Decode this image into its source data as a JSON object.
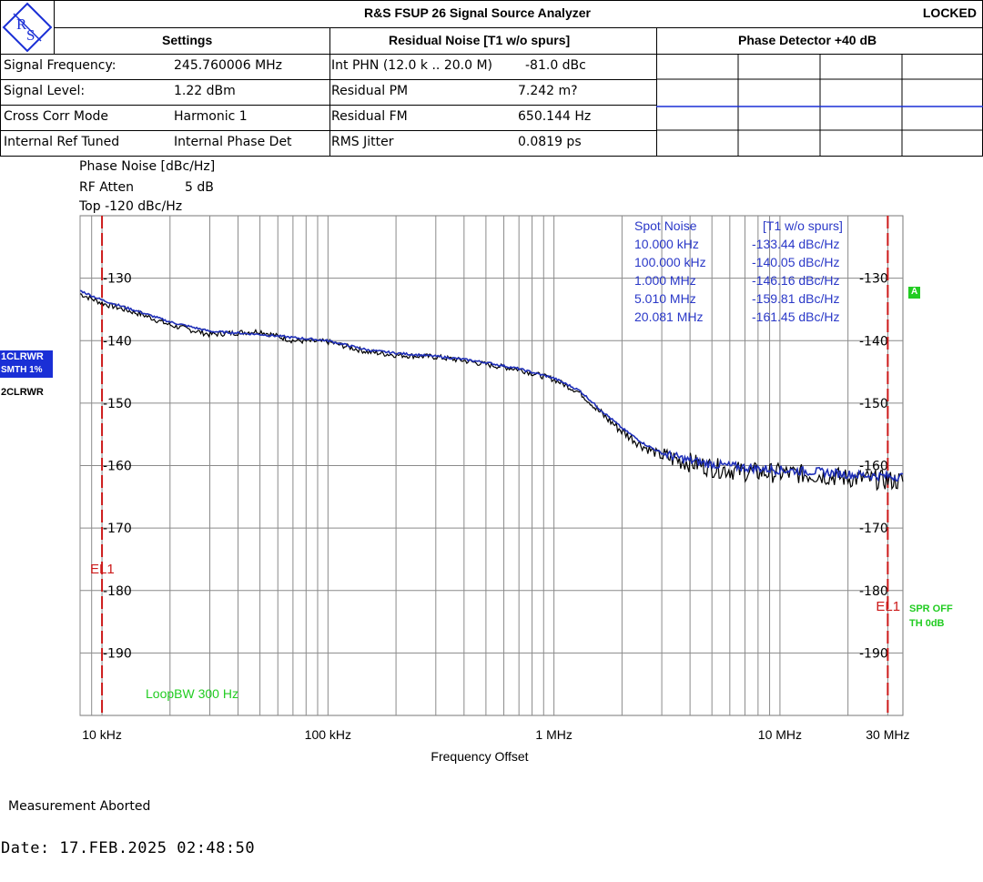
{
  "header": {
    "logo_text": "RS",
    "instrument_title": "R&S FSUP 26 Signal Source Analyzer",
    "status": "LOCKED",
    "col_settings": "Settings",
    "col_residual": "Residual Noise [T1 w/o spurs]",
    "col_phase_detector": "Phase Detector +40 dB"
  },
  "settings": [
    {
      "label": "Signal Frequency:",
      "value": "245.760006 MHz"
    },
    {
      "label": "Signal Level:",
      "value": "1.22 dBm"
    },
    {
      "label": "Cross Corr Mode",
      "value": "Harmonic 1"
    },
    {
      "label": "Internal Ref Tuned",
      "value": "Internal Phase Det"
    }
  ],
  "residual": [
    {
      "label": "Int PHN (12.0 k .. 20.0 M)",
      "value": "-81.0 dBc"
    },
    {
      "label": "Residual PM",
      "value": "7.242 m?"
    },
    {
      "label": "Residual FM",
      "value": "650.144 Hz"
    },
    {
      "label": "RMS Jitter",
      "value": "0.0819 ps"
    }
  ],
  "plot_info": {
    "line1": "Phase Noise [dBc/Hz]",
    "line2_label": "RF Atten",
    "line2_value": "5 dB",
    "line3": "Top -120 dBc/Hz"
  },
  "trace_labels": {
    "trace1_line1": "1CLRWR",
    "trace1_line2": "SMTH 1%",
    "trace2": "2CLRWR",
    "marker_a": "A",
    "spr_off": "SPR OFF",
    "th": "TH 0dB",
    "loop_bw": "LoopBW 300 Hz"
  },
  "spot_noise": {
    "header_left": "Spot Noise",
    "header_right": "[T1 w/o spurs]",
    "rows": [
      {
        "freq": "10.000 kHz",
        "value": "-133.44 dBc/Hz"
      },
      {
        "freq": "100.000 kHz",
        "value": "-140.05 dBc/Hz"
      },
      {
        "freq": "1.000 MHz",
        "value": "-146.16 dBc/Hz"
      },
      {
        "freq": "5.010 MHz",
        "value": "-159.81 dBc/Hz"
      },
      {
        "freq": "20.081 MHz",
        "value": "-161.45 dBc/Hz"
      }
    ]
  },
  "footer": {
    "message": "Measurement Aborted",
    "date": "Date: 17.FEB.2025   02:48:50"
  },
  "colors": {
    "trace_black": "#000000",
    "trace_blue": "#1f2fb8",
    "limit_red": "#cc1a1a",
    "marker_green": "#22cc22",
    "spot_text_blue": "#2a38c8",
    "badge_blue": "#1a2fd6"
  },
  "chart_data": {
    "type": "line",
    "title": "Phase Noise [dBc/Hz]",
    "xlabel": "Frequency Offset",
    "ylabel": "Phase Noise [dBc/Hz]",
    "x_scale": "log",
    "xlim": [
      8000,
      35000000
    ],
    "ylim": [
      -200,
      -120
    ],
    "x_ticks": [
      {
        "value": 10000,
        "label": "10 kHz"
      },
      {
        "value": 100000,
        "label": "100 kHz"
      },
      {
        "value": 1000000,
        "label": "1 MHz"
      },
      {
        "value": 10000000,
        "label": "10 MHz"
      },
      {
        "value": 30000000,
        "label": "30 MHz"
      }
    ],
    "y_ticks": [
      -130,
      -140,
      -150,
      -160,
      -170,
      -180,
      -190
    ],
    "limit_lines": [
      {
        "name": "EL1",
        "x": 10000
      },
      {
        "name": "EL1",
        "x": 30000000
      }
    ],
    "series": [
      {
        "name": "Trace 1 (1CLRWR, SMTH 1%)",
        "color": "#1f2fb8",
        "x": [
          8000,
          10000,
          15000,
          20000,
          30000,
          50000,
          70000,
          100000,
          150000,
          200000,
          300000,
          400000,
          500000,
          700000,
          1000000,
          1300000,
          1600000,
          2000000,
          2500000,
          3000000,
          4000000,
          5010000,
          7000000,
          10000000,
          15000000,
          20081000,
          25000000,
          35000000
        ],
        "y": [
          -132,
          -133.5,
          -135.5,
          -137,
          -138.5,
          -139,
          -139.5,
          -140,
          -141.5,
          -142,
          -142.5,
          -143,
          -143.5,
          -144.5,
          -146,
          -148,
          -151,
          -154,
          -156.5,
          -158,
          -159.2,
          -159.8,
          -160.3,
          -160.7,
          -161,
          -161.4,
          -161.6,
          -161.8
        ]
      },
      {
        "name": "Trace 2 (2CLRWR)",
        "color": "#000000",
        "x": [
          8000,
          10000,
          15000,
          20000,
          30000,
          50000,
          70000,
          100000,
          150000,
          200000,
          300000,
          400000,
          500000,
          700000,
          1000000,
          1300000,
          1600000,
          2000000,
          2500000,
          3000000,
          4000000,
          5010000,
          7000000,
          10000000,
          15000000,
          20081000,
          25000000,
          35000000
        ],
        "y": [
          -132.5,
          -134,
          -135.8,
          -137.5,
          -139,
          -138.5,
          -140,
          -140.2,
          -141.8,
          -142.3,
          -142.6,
          -143.2,
          -143.8,
          -144.6,
          -146.2,
          -148.3,
          -151.5,
          -154.5,
          -157,
          -158.5,
          -159.5,
          -160.3,
          -161,
          -161.2,
          -161.5,
          -162,
          -162.2,
          -162.5
        ]
      }
    ]
  }
}
